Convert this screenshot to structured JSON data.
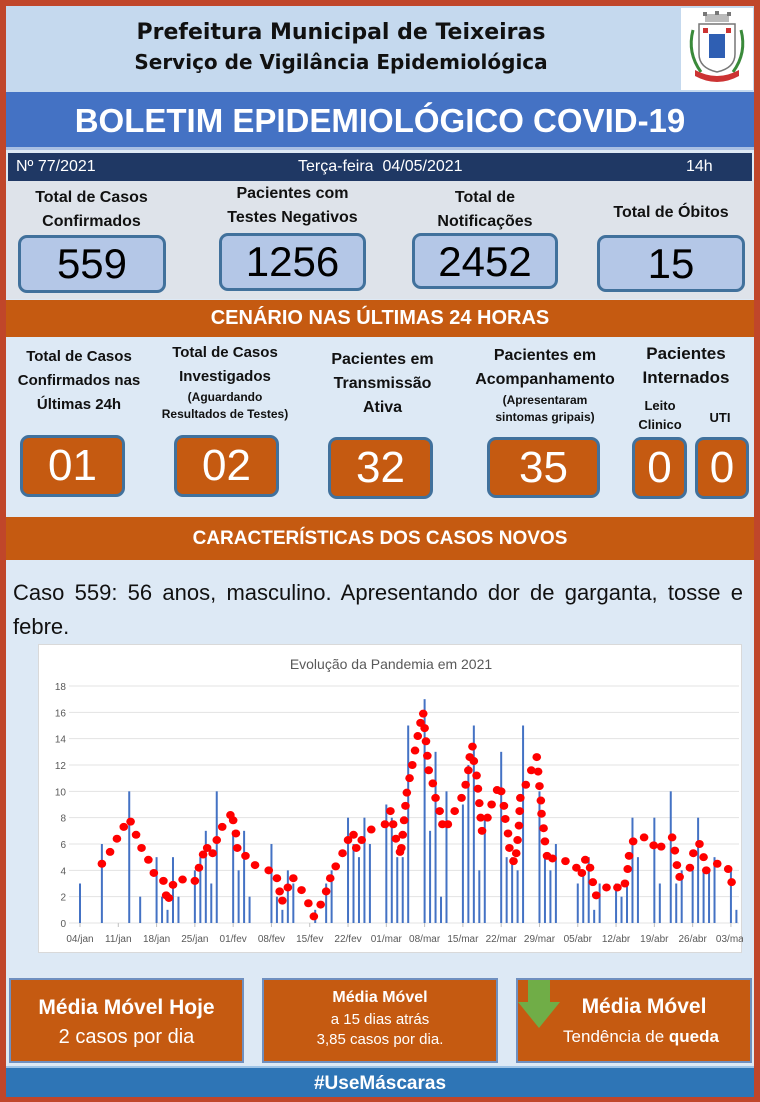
{
  "header": {
    "line1": "Prefeitura Municipal de Teixeiras",
    "line2": "Serviço de Vigilância Epidemiológica"
  },
  "banner": "BOLETIM EPIDEMIOLÓGICO COVID-19",
  "infobar": {
    "number": "Nº 77/2021",
    "date": "Terça-feira  04/05/2021",
    "time": "14h"
  },
  "totals": [
    {
      "label1": "Total de Casos",
      "label2": "Confirmados",
      "value": "559"
    },
    {
      "label1": "Pacientes com",
      "label2": "Testes Negativos",
      "value": "1256"
    },
    {
      "label1": "Total de",
      "label2": "Notificações",
      "value": "2452"
    },
    {
      "label1": "Total de Óbitos",
      "label2": "",
      "value": "15"
    }
  ],
  "last24": {
    "title": "CENÁRIO NAS ÚLTIMAS 24 HORAS",
    "confirmed": {
      "l1": "Total de Casos",
      "l2": "Confirmados nas",
      "l3": "Últimas 24h",
      "value": "01"
    },
    "investigated": {
      "l1": "Total de Casos",
      "l2": "Investigados",
      "s1": "(Aguardando",
      "s2": "Resultados de Testes)",
      "value": "02"
    },
    "active": {
      "l1": "Pacientes em",
      "l2": "Transmissão",
      "l3": "Ativa",
      "value": "32"
    },
    "monitoring": {
      "l1": "Pacientes em",
      "l2": "Acompanhamento",
      "s1": "(Apresentaram",
      "s2": "sintomas gripais)",
      "value": "35"
    },
    "hospital": {
      "l1": "Pacientes",
      "l2": "Internados",
      "ward1": "Leito",
      "ward2": "Clinico",
      "icu": "UTI",
      "ward_value": "0",
      "icu_value": "0"
    }
  },
  "new_cases": {
    "title": "CARACTERÍSTICAS DOS CASOS NOVOS",
    "text": "Caso 559: 56 anos, masculino. Apresentando dor de garganta, tosse e febre."
  },
  "chart_data": {
    "type": "bar+scatter",
    "title": "Evolução da Pandemia em 2021",
    "ylim": [
      0,
      18
    ],
    "yticks": [
      0,
      2,
      4,
      6,
      8,
      10,
      12,
      14,
      16,
      18
    ],
    "grid": true,
    "xticks": [
      "04/jan",
      "11/jan",
      "18/jan",
      "25/jan",
      "01/fev",
      "08/fev",
      "15/fev",
      "22/fev",
      "01/mar",
      "08/mar",
      "15/mar",
      "22/mar",
      "29/mar",
      "05/abr",
      "12/abr",
      "19/abr",
      "26/abr",
      "03/mai"
    ],
    "xlim": [
      "2021-01-04",
      "2021-05-04"
    ],
    "bar_color": "#4472c4",
    "dot_color": "#ff0000",
    "daily_cases": [
      [
        "2021-01-04",
        3
      ],
      [
        "2021-01-08",
        6
      ],
      [
        "2021-01-13",
        10
      ],
      [
        "2021-01-15",
        2
      ],
      [
        "2021-01-18",
        5
      ],
      [
        "2021-01-19",
        2
      ],
      [
        "2021-01-20",
        1
      ],
      [
        "2021-01-21",
        5
      ],
      [
        "2021-01-22",
        2
      ],
      [
        "2021-01-25",
        4
      ],
      [
        "2021-01-26",
        5
      ],
      [
        "2021-01-27",
        7
      ],
      [
        "2021-01-28",
        3
      ],
      [
        "2021-01-29",
        10
      ],
      [
        "2021-02-01",
        7
      ],
      [
        "2021-02-02",
        4
      ],
      [
        "2021-02-03",
        7
      ],
      [
        "2021-02-04",
        2
      ],
      [
        "2021-02-08",
        6
      ],
      [
        "2021-02-09",
        2
      ],
      [
        "2021-02-10",
        1
      ],
      [
        "2021-02-11",
        4
      ],
      [
        "2021-02-12",
        3
      ],
      [
        "2021-02-16",
        1
      ],
      [
        "2021-02-18",
        3
      ],
      [
        "2021-02-19",
        4
      ],
      [
        "2021-02-22",
        8
      ],
      [
        "2021-02-23",
        6
      ],
      [
        "2021-02-24",
        5
      ],
      [
        "2021-02-25",
        8
      ],
      [
        "2021-02-26",
        6
      ],
      [
        "2021-03-01",
        9
      ],
      [
        "2021-03-02",
        8
      ],
      [
        "2021-03-03",
        5
      ],
      [
        "2021-03-04",
        5
      ],
      [
        "2021-03-05",
        15
      ],
      [
        "2021-03-08",
        17
      ],
      [
        "2021-03-09",
        7
      ],
      [
        "2021-03-10",
        13
      ],
      [
        "2021-03-11",
        2
      ],
      [
        "2021-03-12",
        10
      ],
      [
        "2021-03-15",
        9
      ],
      [
        "2021-03-16",
        12
      ],
      [
        "2021-03-17",
        15
      ],
      [
        "2021-03-18",
        4
      ],
      [
        "2021-03-19",
        8
      ],
      [
        "2021-03-22",
        13
      ],
      [
        "2021-03-23",
        5
      ],
      [
        "2021-03-24",
        5
      ],
      [
        "2021-03-25",
        4
      ],
      [
        "2021-03-26",
        15
      ],
      [
        "2021-03-29",
        10
      ],
      [
        "2021-03-30",
        5
      ],
      [
        "2021-03-31",
        4
      ],
      [
        "2021-04-01",
        6
      ],
      [
        "2021-04-05",
        3
      ],
      [
        "2021-04-06",
        4
      ],
      [
        "2021-04-07",
        5
      ],
      [
        "2021-04-08",
        1
      ],
      [
        "2021-04-09",
        3
      ],
      [
        "2021-04-12",
        3
      ],
      [
        "2021-04-13",
        2
      ],
      [
        "2021-04-14",
        3
      ],
      [
        "2021-04-15",
        8
      ],
      [
        "2021-04-16",
        5
      ],
      [
        "2021-04-19",
        8
      ],
      [
        "2021-04-20",
        3
      ],
      [
        "2021-04-22",
        10
      ],
      [
        "2021-04-23",
        3
      ],
      [
        "2021-04-24",
        4
      ],
      [
        "2021-04-26",
        4
      ],
      [
        "2021-04-27",
        8
      ],
      [
        "2021-04-28",
        4
      ],
      [
        "2021-04-29",
        4
      ],
      [
        "2021-04-30",
        5
      ],
      [
        "2021-05-03",
        4
      ],
      [
        "2021-05-04",
        1
      ]
    ],
    "moving_average": [
      [
        "2021-01-08T00",
        4.5
      ],
      [
        "2021-01-09T12",
        5.4
      ],
      [
        "2021-01-10T18",
        6.4
      ],
      [
        "2021-01-12T00",
        7.3
      ],
      [
        "2021-01-13T06",
        7.7
      ],
      [
        "2021-01-14T06",
        6.7
      ],
      [
        "2021-01-15T06",
        5.7
      ],
      [
        "2021-01-16T12",
        4.8
      ],
      [
        "2021-01-17T12",
        3.8
      ],
      [
        "2021-01-19T06",
        3.2
      ],
      [
        "2021-01-19T18",
        2.1
      ],
      [
        "2021-01-20T06",
        1.9
      ],
      [
        "2021-01-21T00",
        2.9
      ],
      [
        "2021-01-22T18",
        3.3
      ],
      [
        "2021-01-25T00",
        3.2
      ],
      [
        "2021-01-25T18",
        4.2
      ],
      [
        "2021-01-26T12",
        5.2
      ],
      [
        "2021-01-27T06",
        5.7
      ],
      [
        "2021-01-28T06",
        5.3
      ],
      [
        "2021-01-29T00",
        6.3
      ],
      [
        "2021-01-30T00",
        7.3
      ],
      [
        "2021-01-31T12",
        8.2
      ],
      [
        "2021-02-01T00",
        7.8
      ],
      [
        "2021-02-01T12",
        6.8
      ],
      [
        "2021-02-01T18",
        5.7
      ],
      [
        "2021-02-03T06",
        5.1
      ],
      [
        "2021-02-05T00",
        4.4
      ],
      [
        "2021-02-07T12",
        4.0
      ],
      [
        "2021-02-09T00",
        3.4
      ],
      [
        "2021-02-09T12",
        2.4
      ],
      [
        "2021-02-10T00",
        1.7
      ],
      [
        "2021-02-11T00",
        2.7
      ],
      [
        "2021-02-12T00",
        3.4
      ],
      [
        "2021-02-13T12",
        2.5
      ],
      [
        "2021-02-14T18",
        1.5
      ],
      [
        "2021-02-15T18",
        0.5
      ],
      [
        "2021-02-17T00",
        1.4
      ],
      [
        "2021-02-18T00",
        2.4
      ],
      [
        "2021-02-18T18",
        3.4
      ],
      [
        "2021-02-19T18",
        4.3
      ],
      [
        "2021-02-21T00",
        5.3
      ],
      [
        "2021-02-22T00",
        6.3
      ],
      [
        "2021-02-23T00",
        6.7
      ],
      [
        "2021-02-23T12",
        5.7
      ],
      [
        "2021-02-24T12",
        6.3
      ],
      [
        "2021-02-26T06",
        7.1
      ],
      [
        "2021-02-28T18",
        7.5
      ],
      [
        "2021-03-01T18",
        8.5
      ],
      [
        "2021-03-02T06",
        7.5
      ],
      [
        "2021-03-02T18",
        6.4
      ],
      [
        "2021-03-03T12",
        5.4
      ],
      [
        "2021-03-03T18",
        5.7
      ],
      [
        "2021-03-04T00",
        6.7
      ],
      [
        "2021-03-04T06",
        7.8
      ],
      [
        "2021-03-04T12",
        8.9
      ],
      [
        "2021-03-04T18",
        9.9
      ],
      [
        "2021-03-05T06",
        11.0
      ],
      [
        "2021-03-05T18",
        12.0
      ],
      [
        "2021-03-06T06",
        13.1
      ],
      [
        "2021-03-06T18",
        14.2
      ],
      [
        "2021-03-07T06",
        15.2
      ],
      [
        "2021-03-07T18",
        15.9
      ],
      [
        "2021-03-08T00",
        14.8
      ],
      [
        "2021-03-08T06",
        13.8
      ],
      [
        "2021-03-08T12",
        12.7
      ],
      [
        "2021-03-08T18",
        11.6
      ],
      [
        "2021-03-09T12",
        10.6
      ],
      [
        "2021-03-10T00",
        9.5
      ],
      [
        "2021-03-10T18",
        8.5
      ],
      [
        "2021-03-11T06",
        7.5
      ],
      [
        "2021-03-12T06",
        7.5
      ],
      [
        "2021-03-13T12",
        8.5
      ],
      [
        "2021-03-14T18",
        9.5
      ],
      [
        "2021-03-15T12",
        10.5
      ],
      [
        "2021-03-16T00",
        11.6
      ],
      [
        "2021-03-16T06",
        12.6
      ],
      [
        "2021-03-16T18",
        13.4
      ],
      [
        "2021-03-17T00",
        12.3
      ],
      [
        "2021-03-17T12",
        11.2
      ],
      [
        "2021-03-17T18",
        10.2
      ],
      [
        "2021-03-18T00",
        9.1
      ],
      [
        "2021-03-18T06",
        8.0
      ],
      [
        "2021-03-18T12",
        7.0
      ],
      [
        "2021-03-19T12",
        8.0
      ],
      [
        "2021-03-20T06",
        9.0
      ],
      [
        "2021-03-21T06",
        10.1
      ],
      [
        "2021-03-22T00",
        10.0
      ],
      [
        "2021-03-22T12",
        8.9
      ],
      [
        "2021-03-22T18",
        7.9
      ],
      [
        "2021-03-23T06",
        6.8
      ],
      [
        "2021-03-23T12",
        5.7
      ],
      [
        "2021-03-24T06",
        4.7
      ],
      [
        "2021-03-24T18",
        5.3
      ],
      [
        "2021-03-25T00",
        6.3
      ],
      [
        "2021-03-25T06",
        7.4
      ],
      [
        "2021-03-25T09",
        8.5
      ],
      [
        "2021-03-25T12",
        9.5
      ],
      [
        "2021-03-26T12",
        10.5
      ],
      [
        "2021-03-27T12",
        11.6
      ],
      [
        "2021-03-28T12",
        12.6
      ],
      [
        "2021-03-28T18",
        11.5
      ],
      [
        "2021-03-29T00",
        10.4
      ],
      [
        "2021-03-29T06",
        9.3
      ],
      [
        "2021-03-29T09",
        8.3
      ],
      [
        "2021-03-29T18",
        7.2
      ],
      [
        "2021-03-30T00",
        6.2
      ],
      [
        "2021-03-30T09",
        5.1
      ],
      [
        "2021-03-31T09",
        4.9
      ],
      [
        "2021-04-02T18",
        4.7
      ],
      [
        "2021-04-04T18",
        4.2
      ],
      [
        "2021-04-05T18",
        3.8
      ],
      [
        "2021-04-06T09",
        4.8
      ],
      [
        "2021-04-07T06",
        4.2
      ],
      [
        "2021-04-07T18",
        3.1
      ],
      [
        "2021-04-08T09",
        2.1
      ],
      [
        "2021-04-10T06",
        2.7
      ],
      [
        "2021-04-12T06",
        2.7
      ],
      [
        "2021-04-13T15",
        3.0
      ],
      [
        "2021-04-14T03",
        4.1
      ],
      [
        "2021-04-14T09",
        5.1
      ],
      [
        "2021-04-15T03",
        6.2
      ],
      [
        "2021-04-17T03",
        6.5
      ],
      [
        "2021-04-18T21",
        5.9
      ],
      [
        "2021-04-20T06",
        5.8
      ],
      [
        "2021-04-22T06",
        6.5
      ],
      [
        "2021-04-22T18",
        5.5
      ],
      [
        "2021-04-23T03",
        4.4
      ],
      [
        "2021-04-23T15",
        3.5
      ],
      [
        "2021-04-25T12",
        4.2
      ],
      [
        "2021-04-26T03",
        5.3
      ],
      [
        "2021-04-27T06",
        6.0
      ],
      [
        "2021-04-28T00",
        5.0
      ],
      [
        "2021-04-28T12",
        4.0
      ],
      [
        "2021-04-30T12",
        4.5
      ],
      [
        "2021-05-02T12",
        4.1
      ],
      [
        "2021-05-03T03",
        3.1
      ]
    ]
  },
  "footer": {
    "today": {
      "title": "Média Móvel Hoje",
      "value": "2 casos por dia"
    },
    "past": {
      "title": "Média Móvel",
      "l1": "a 15 dias atrás",
      "l2": "3,85 casos por dia."
    },
    "trend": {
      "title": "Média Móvel",
      "prefix": "Tendência de ",
      "word": "queda",
      "icon": "arrow-down-icon"
    },
    "hashtag": "#UseMáscaras"
  },
  "colors": {
    "border": "#c0462a",
    "banner": "#4472c4",
    "navy": "#1f3864",
    "orange": "#c55a11",
    "box_blue": "#b4c7e7",
    "arrow": "#70ad47"
  }
}
